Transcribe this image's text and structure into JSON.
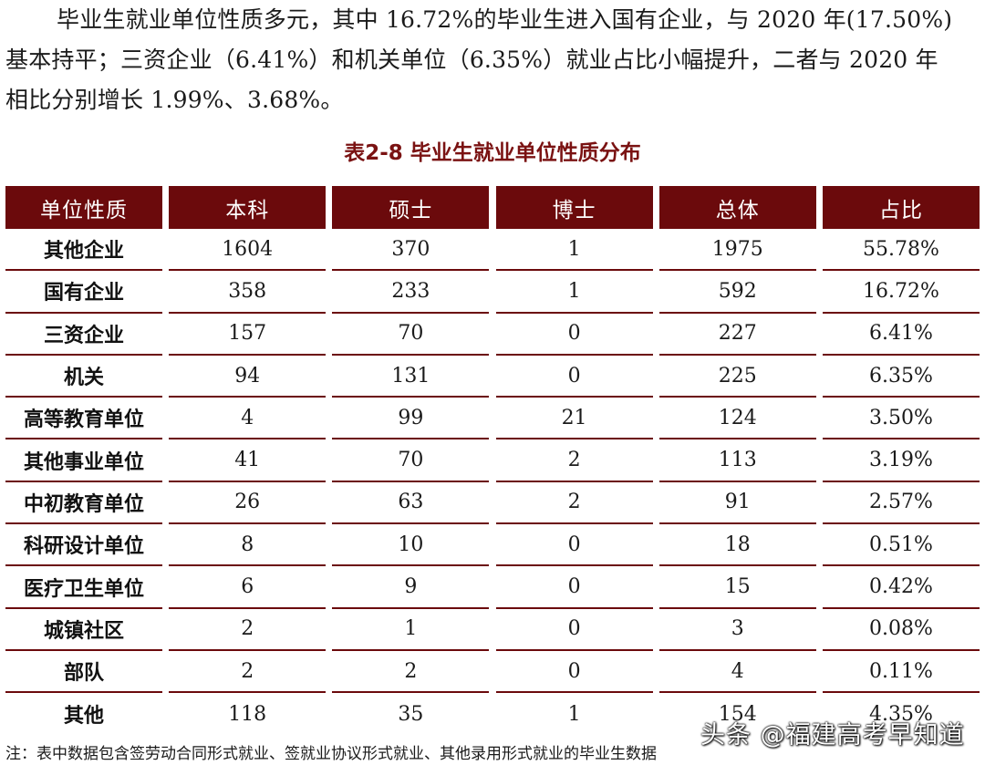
{
  "intro": {
    "line1": "毕业生就业单位性质多元，其中 16.72%的毕业生进入国有企业，与 2020 年(17.50%)",
    "line2": "基本持平；三资企业（6.41%）和机关单位（6.35%）就业占比小幅提升，二者与 2020 年",
    "line3": "相比分别增长 1.99%、3.68%。"
  },
  "table": {
    "caption": "表2-8 毕业生就业单位性质分布",
    "headers": [
      "单位性质",
      "本科",
      "硕士",
      "博士",
      "总体",
      "占比"
    ],
    "rows": [
      [
        "其他企业",
        "1604",
        "370",
        "1",
        "1975",
        "55.78%"
      ],
      [
        "国有企业",
        "358",
        "233",
        "1",
        "592",
        "16.72%"
      ],
      [
        "三资企业",
        "157",
        "70",
        "0",
        "227",
        "6.41%"
      ],
      [
        "机关",
        "94",
        "131",
        "0",
        "225",
        "6.35%"
      ],
      [
        "高等教育单位",
        "4",
        "99",
        "21",
        "124",
        "3.50%"
      ],
      [
        "其他事业单位",
        "41",
        "70",
        "2",
        "113",
        "3.19%"
      ],
      [
        "中初教育单位",
        "26",
        "63",
        "2",
        "91",
        "2.57%"
      ],
      [
        "科研设计单位",
        "8",
        "10",
        "0",
        "18",
        "0.51%"
      ],
      [
        "医疗卫生单位",
        "6",
        "9",
        "0",
        "15",
        "0.42%"
      ],
      [
        "城镇社区",
        "2",
        "1",
        "0",
        "3",
        "0.08%"
      ],
      [
        "部队",
        "2",
        "2",
        "0",
        "4",
        "0.11%"
      ],
      [
        "其他",
        "118",
        "35",
        "1",
        "154",
        "4.35%"
      ]
    ]
  },
  "note": "注：表中数据包含签劳动合同形式就业、签就业协议形式就业、其他录用形式就业的毕业生数据",
  "watermark": "头条 @福建高考早知道",
  "colors": {
    "header_bg": "#6b0a0c",
    "caption": "#7a1212",
    "rule": "#6b0a0c"
  }
}
